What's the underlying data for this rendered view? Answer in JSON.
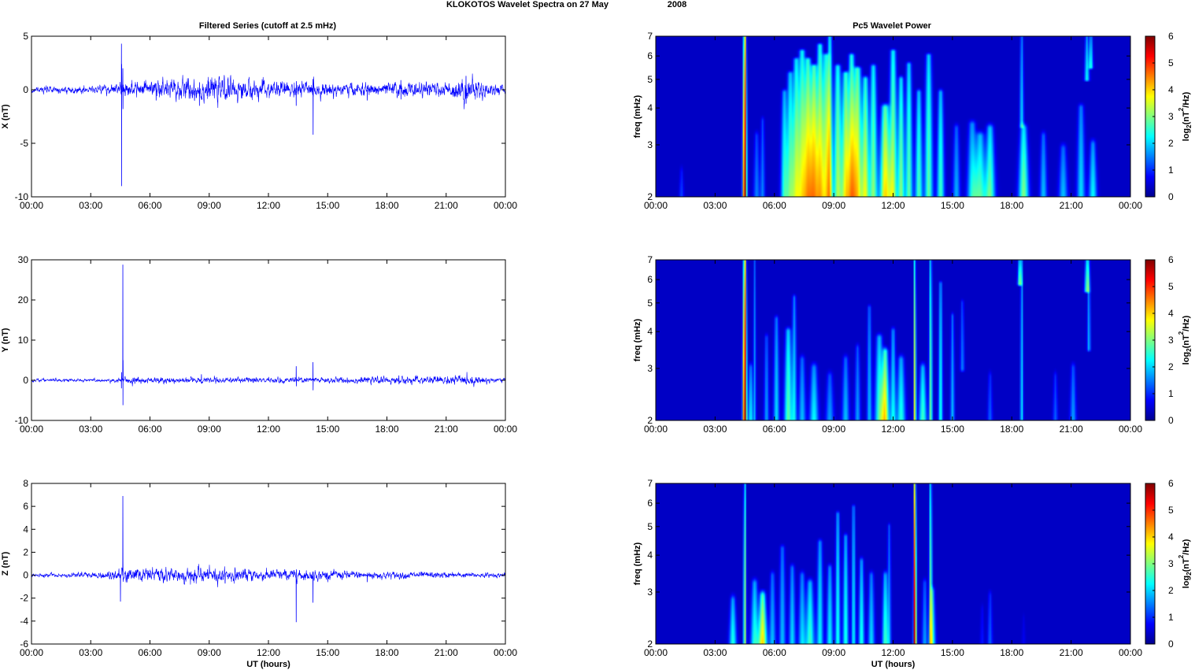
{
  "figure": {
    "title": "KLOKOTOS Wavelet Spectra on 27 May",
    "title_year": "2008",
    "left_title": "Filtered Series (cutoff at 2.5 mHz)",
    "right_title": "Pc5 Wavelet Power"
  },
  "colors": {
    "trace": "#0000ff",
    "axis": "#000000",
    "background": "#ffffff"
  },
  "chart_data": [
    {
      "id": "x-series",
      "type": "line",
      "ylabel": "X (nT)",
      "xlabel": "",
      "xticks": [
        "00:00",
        "03:00",
        "06:00",
        "09:00",
        "12:00",
        "15:00",
        "18:00",
        "21:00",
        "00:00"
      ],
      "xlim_hours": [
        0,
        24
      ],
      "ylim": [
        -10,
        5
      ],
      "yticks": [
        -10,
        -5,
        0,
        5
      ],
      "noise_profile": [
        [
          0,
          0.12
        ],
        [
          3,
          0.15
        ],
        [
          5,
          0.3
        ],
        [
          7,
          0.45
        ],
        [
          9,
          0.5
        ],
        [
          11,
          0.4
        ],
        [
          14,
          0.3
        ],
        [
          17,
          0.25
        ],
        [
          19,
          0.3
        ],
        [
          21,
          0.25
        ],
        [
          22,
          0.6
        ],
        [
          23,
          0.3
        ],
        [
          24,
          0.15
        ]
      ],
      "spikes": [
        {
          "t": 4.55,
          "values": [
            4.3,
            -9.0,
            2.4
          ]
        },
        {
          "t": 4.62,
          "values": [
            2.0,
            -1.8
          ]
        },
        {
          "t": 6.3,
          "values": [
            0.6,
            -1.0
          ]
        },
        {
          "t": 8.5,
          "values": [
            -1.5,
            0.7
          ]
        },
        {
          "t": 13.4,
          "values": [
            -1.5,
            0.8
          ]
        },
        {
          "t": 14.25,
          "values": [
            1.0,
            -4.2
          ]
        },
        {
          "t": 17.0,
          "values": [
            -1.0
          ]
        },
        {
          "t": 18.7,
          "values": [
            0.9,
            -0.9
          ]
        },
        {
          "t": 22.0,
          "values": [
            1.3,
            -1.3
          ]
        }
      ]
    },
    {
      "id": "x-wavelet",
      "type": "heatmap",
      "ylabel": "freq (mHz)",
      "colorbar_label": "log2(nT2/Hz)",
      "xticks": [
        "00:00",
        "03:00",
        "06:00",
        "09:00",
        "12:00",
        "15:00",
        "18:00",
        "21:00",
        "00:00"
      ],
      "xlim_hours": [
        0,
        24
      ],
      "ylim_mhz": [
        2,
        7
      ],
      "yticks": [
        2,
        3,
        4,
        5,
        6,
        7
      ],
      "clim": [
        0,
        6
      ],
      "colorbar_ticks": [
        0,
        1,
        2,
        3,
        4,
        5,
        6
      ],
      "streaks": [
        [
          4.5,
          6.0,
          2.0,
          7.0,
          0.1
        ],
        [
          1.3,
          0.8,
          2.0,
          2.4,
          0.12
        ],
        [
          5.1,
          1.2,
          2.0,
          3.2,
          0.15
        ],
        [
          5.4,
          1.2,
          2.0,
          3.6,
          0.12
        ],
        [
          6.5,
          2.2,
          2.0,
          4.5,
          0.18
        ],
        [
          6.8,
          2.5,
          2.0,
          5.2,
          0.2
        ],
        [
          7.1,
          2.8,
          2.0,
          5.8,
          0.2
        ],
        [
          7.4,
          3.0,
          2.0,
          6.2,
          0.22
        ],
        [
          7.7,
          3.4,
          2.0,
          5.8,
          0.22
        ],
        [
          8.0,
          3.6,
          2.0,
          5.5,
          0.22
        ],
        [
          8.3,
          3.2,
          2.0,
          6.5,
          0.2
        ],
        [
          8.6,
          3.0,
          2.0,
          6.0,
          0.22
        ],
        [
          8.8,
          2.8,
          2.0,
          7.0,
          0.15
        ],
        [
          9.2,
          3.0,
          2.0,
          5.5,
          0.22
        ],
        [
          9.6,
          3.4,
          2.0,
          5.2,
          0.22
        ],
        [
          9.9,
          3.2,
          2.0,
          6.0,
          0.2
        ],
        [
          10.2,
          3.6,
          2.0,
          5.4,
          0.25
        ],
        [
          10.6,
          3.2,
          2.0,
          5.0,
          0.2
        ],
        [
          11.0,
          2.8,
          2.0,
          5.5,
          0.2
        ],
        [
          11.6,
          3.8,
          2.0,
          4.0,
          0.28
        ],
        [
          12.0,
          3.0,
          2.0,
          6.2,
          0.2
        ],
        [
          12.4,
          2.8,
          2.0,
          5.0,
          0.18
        ],
        [
          12.8,
          2.6,
          2.0,
          5.6,
          0.18
        ],
        [
          13.3,
          2.5,
          2.0,
          4.5,
          0.18
        ],
        [
          13.8,
          2.6,
          2.0,
          6.0,
          0.2
        ],
        [
          14.4,
          2.4,
          2.0,
          4.5,
          0.18
        ],
        [
          15.2,
          1.5,
          2.0,
          3.4,
          0.18
        ],
        [
          16.0,
          2.0,
          2.0,
          3.5,
          0.25
        ],
        [
          16.4,
          2.4,
          2.0,
          3.2,
          0.3
        ],
        [
          16.9,
          2.6,
          2.0,
          3.4,
          0.25
        ],
        [
          18.6,
          2.8,
          2.0,
          3.4,
          0.25
        ],
        [
          18.5,
          1.8,
          3.5,
          7.0,
          0.1
        ],
        [
          19.6,
          1.6,
          2.0,
          3.2,
          0.18
        ],
        [
          20.6,
          1.6,
          2.0,
          2.9,
          0.22
        ],
        [
          21.5,
          1.8,
          2.0,
          4.0,
          0.2
        ],
        [
          22.1,
          2.0,
          2.0,
          3.0,
          0.2
        ],
        [
          21.8,
          2.0,
          5.0,
          7.0,
          0.12
        ],
        [
          22.0,
          2.2,
          5.5,
          7.0,
          0.1
        ]
      ]
    },
    {
      "id": "y-series",
      "type": "line",
      "ylabel": "Y (nT)",
      "xlabel": "",
      "xticks": [
        "00:00",
        "03:00",
        "06:00",
        "09:00",
        "12:00",
        "15:00",
        "18:00",
        "21:00",
        "00:00"
      ],
      "xlim_hours": [
        0,
        24
      ],
      "ylim": [
        -10,
        30
      ],
      "yticks": [
        -10,
        0,
        10,
        20,
        30
      ],
      "noise_profile": [
        [
          0,
          0.15
        ],
        [
          4,
          0.2
        ],
        [
          5,
          0.4
        ],
        [
          8,
          0.3
        ],
        [
          12,
          0.3
        ],
        [
          18,
          0.35
        ],
        [
          22,
          0.5
        ],
        [
          24,
          0.2
        ]
      ],
      "spikes": [
        {
          "t": 4.62,
          "values": [
            28.8,
            -6.2,
            5.0
          ]
        },
        {
          "t": 4.55,
          "values": [
            -2.0,
            2.0
          ]
        },
        {
          "t": 8.6,
          "values": [
            1.5
          ]
        },
        {
          "t": 13.4,
          "values": [
            3.5,
            -1.5
          ]
        },
        {
          "t": 14.25,
          "values": [
            4.5,
            -2.5
          ]
        },
        {
          "t": 18.6,
          "values": [
            1.2,
            -1.0
          ]
        },
        {
          "t": 22.3,
          "values": [
            0.8,
            -0.8
          ]
        }
      ]
    },
    {
      "id": "y-wavelet",
      "type": "heatmap",
      "ylabel": "freq (mHz)",
      "colorbar_label": "log2(nT2/Hz)",
      "xticks": [
        "00:00",
        "03:00",
        "06:00",
        "09:00",
        "12:00",
        "15:00",
        "18:00",
        "21:00",
        "00:00"
      ],
      "xlim_hours": [
        0,
        24
      ],
      "ylim_mhz": [
        2,
        7
      ],
      "yticks": [
        2,
        3,
        4,
        5,
        6,
        7
      ],
      "clim": [
        0,
        6
      ],
      "colorbar_ticks": [
        0,
        1,
        2,
        3,
        4,
        5,
        6
      ],
      "streaks": [
        [
          4.5,
          6.0,
          2.0,
          7.0,
          0.1
        ],
        [
          4.8,
          2.0,
          2.0,
          3.0,
          0.12
        ],
        [
          5.0,
          1.4,
          2.0,
          7.0,
          0.07
        ],
        [
          5.6,
          1.4,
          2.0,
          3.8,
          0.12
        ],
        [
          6.1,
          1.8,
          2.0,
          4.4,
          0.14
        ],
        [
          6.7,
          2.6,
          2.0,
          4.0,
          0.2
        ],
        [
          7.0,
          1.8,
          2.0,
          5.2,
          0.12
        ],
        [
          7.4,
          1.6,
          2.0,
          3.2,
          0.18
        ],
        [
          8.0,
          2.0,
          2.0,
          3.0,
          0.22
        ],
        [
          8.8,
          1.4,
          2.0,
          2.8,
          0.2
        ],
        [
          9.6,
          1.6,
          2.0,
          3.2,
          0.18
        ],
        [
          10.2,
          1.4,
          2.0,
          3.5,
          0.14
        ],
        [
          10.8,
          1.6,
          2.0,
          4.8,
          0.12
        ],
        [
          11.3,
          2.4,
          2.0,
          3.8,
          0.22
        ],
        [
          11.6,
          3.6,
          2.0,
          3.4,
          0.2
        ],
        [
          12.0,
          2.0,
          2.0,
          4.0,
          0.14
        ],
        [
          12.4,
          2.2,
          2.0,
          3.2,
          0.22
        ],
        [
          13.1,
          3.8,
          2.0,
          7.0,
          0.06
        ],
        [
          13.5,
          2.4,
          2.0,
          3.0,
          0.2
        ],
        [
          13.9,
          2.8,
          2.0,
          7.0,
          0.08
        ],
        [
          14.4,
          2.2,
          2.0,
          5.8,
          0.1
        ],
        [
          15.0,
          1.6,
          2.0,
          4.5,
          0.1
        ],
        [
          15.5,
          1.2,
          3.0,
          5.0,
          0.1
        ],
        [
          16.9,
          1.0,
          2.0,
          2.8,
          0.12
        ],
        [
          18.5,
          2.0,
          2.0,
          7.0,
          0.07
        ],
        [
          18.4,
          2.8,
          5.8,
          7.0,
          0.1
        ],
        [
          20.2,
          1.0,
          2.0,
          2.8,
          0.12
        ],
        [
          21.1,
          1.4,
          2.0,
          3.0,
          0.15
        ],
        [
          21.8,
          2.6,
          5.5,
          7.0,
          0.12
        ],
        [
          21.9,
          1.6,
          3.5,
          7.0,
          0.08
        ]
      ]
    },
    {
      "id": "z-series",
      "type": "line",
      "ylabel": "Z (nT)",
      "xlabel": "UT (hours)",
      "xticks": [
        "00:00",
        "03:00",
        "06:00",
        "09:00",
        "12:00",
        "15:00",
        "18:00",
        "21:00",
        "00:00"
      ],
      "xlim_hours": [
        0,
        24
      ],
      "ylim": [
        -6,
        8
      ],
      "yticks": [
        -6,
        -4,
        -2,
        0,
        2,
        4,
        6,
        8
      ],
      "noise_profile": [
        [
          0,
          0.06
        ],
        [
          3,
          0.1
        ],
        [
          5,
          0.25
        ],
        [
          8,
          0.3
        ],
        [
          10,
          0.25
        ],
        [
          13,
          0.2
        ],
        [
          17,
          0.15
        ],
        [
          20,
          0.12
        ],
        [
          24,
          0.08
        ]
      ],
      "spikes": [
        {
          "t": 4.62,
          "values": [
            6.9,
            1.2
          ]
        },
        {
          "t": 4.5,
          "values": [
            -2.3
          ]
        },
        {
          "t": 13.4,
          "values": [
            -4.1,
            0.5
          ]
        },
        {
          "t": 14.25,
          "values": [
            -2.4,
            0.3
          ]
        },
        {
          "t": 17.0,
          "values": [
            -0.6
          ]
        }
      ]
    },
    {
      "id": "z-wavelet",
      "type": "heatmap",
      "ylabel": "freq (mHz)",
      "colorbar_label": "log2(nT2/Hz)",
      "xlabel": "UT (hours)",
      "xticks": [
        "00:00",
        "03:00",
        "06:00",
        "09:00",
        "12:00",
        "15:00",
        "18:00",
        "21:00",
        "00:00"
      ],
      "xlim_hours": [
        0,
        24
      ],
      "ylim_mhz": [
        2,
        7
      ],
      "yticks": [
        2,
        3,
        4,
        5,
        6,
        7
      ],
      "clim": [
        0,
        6
      ],
      "colorbar_ticks": [
        0,
        1,
        2,
        3,
        4,
        5,
        6
      ],
      "streaks": [
        [
          3.9,
          2.2,
          2.0,
          2.8,
          0.18
        ],
        [
          4.5,
          3.2,
          2.0,
          7.0,
          0.07
        ],
        [
          5.0,
          2.2,
          2.0,
          3.2,
          0.2
        ],
        [
          5.4,
          3.8,
          2.0,
          2.9,
          0.22
        ],
        [
          5.9,
          1.6,
          2.0,
          3.4,
          0.16
        ],
        [
          6.4,
          1.6,
          2.0,
          4.2,
          0.16
        ],
        [
          6.9,
          1.8,
          2.0,
          3.6,
          0.16
        ],
        [
          7.4,
          1.8,
          2.0,
          3.4,
          0.18
        ],
        [
          7.8,
          2.4,
          2.0,
          3.2,
          0.22
        ],
        [
          8.3,
          2.0,
          2.0,
          4.4,
          0.16
        ],
        [
          8.8,
          2.0,
          2.0,
          3.6,
          0.16
        ],
        [
          9.2,
          2.2,
          2.0,
          5.5,
          0.12
        ],
        [
          9.6,
          2.2,
          2.0,
          4.6,
          0.14
        ],
        [
          10.0,
          2.0,
          2.0,
          5.8,
          0.1
        ],
        [
          10.4,
          2.2,
          2.0,
          3.8,
          0.14
        ],
        [
          10.9,
          1.8,
          2.0,
          3.4,
          0.16
        ],
        [
          11.6,
          2.4,
          2.0,
          3.4,
          0.15
        ],
        [
          11.8,
          1.4,
          2.0,
          5.0,
          0.1
        ],
        [
          13.1,
          6.0,
          2.0,
          7.0,
          0.07
        ],
        [
          13.6,
          1.4,
          2.0,
          3.2,
          0.14
        ],
        [
          13.9,
          3.0,
          2.0,
          7.0,
          0.08
        ],
        [
          14.0,
          2.0,
          2.0,
          3.0,
          0.15
        ],
        [
          16.9,
          1.0,
          2.0,
          2.9,
          0.12
        ],
        [
          16.5,
          0.5,
          2.0,
          2.6,
          0.1
        ],
        [
          18.6,
          0.3,
          2.0,
          2.4,
          0.1
        ]
      ]
    }
  ]
}
